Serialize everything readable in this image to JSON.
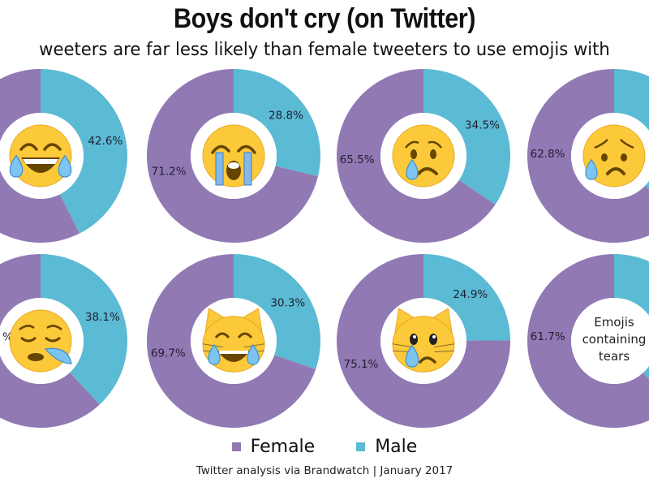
{
  "title": "Boys don't cry (on Twitter)",
  "subtitle": "Male tweeters are far less likely than female tweeters to use emojis with tears",
  "subtitle_visible": "weeters are far less likely than female tweeters to use emojis with",
  "colors": {
    "female": "#9179b4",
    "male": "#5bbad4"
  },
  "legend": [
    {
      "label": "Female",
      "key": "female"
    },
    {
      "label": "Male",
      "key": "male"
    }
  ],
  "source": "Twitter analysis via Brandwatch | January 2017",
  "chart_data": {
    "type": "pie",
    "title": "Boys don't cry (on Twitter)",
    "series_names": [
      "Female",
      "Male"
    ],
    "charts": [
      {
        "emoji": "face-with-tears-of-joy",
        "female": 57.4,
        "male": 42.6,
        "female_label": "",
        "male_label": "42.6%"
      },
      {
        "emoji": "loudly-crying-face",
        "female": 71.2,
        "male": 28.8,
        "female_label": "71.2%",
        "male_label": "28.8%"
      },
      {
        "emoji": "crying-face",
        "female": 65.5,
        "male": 34.5,
        "female_label": "65.5%",
        "male_label": "34.5%"
      },
      {
        "emoji": "disappointed-but-relieved-face",
        "female": 62.8,
        "male": 37.2,
        "female_label": "62.8%",
        "male_label": ""
      },
      {
        "emoji": "sleepy-face",
        "female": 61.9,
        "male": 38.1,
        "female_label": "%",
        "male_label": "38.1%"
      },
      {
        "emoji": "cat-face-with-tears-of-joy",
        "female": 69.7,
        "male": 30.3,
        "female_label": "69.7%",
        "male_label": "30.3%"
      },
      {
        "emoji": "crying-cat-face",
        "female": 75.1,
        "male": 24.9,
        "female_label": "75.1%",
        "male_label": "24.9%"
      },
      {
        "emoji": "",
        "center_text": [
          "Emojis",
          "containing",
          "tears"
        ],
        "female": 61.7,
        "male": 38.3,
        "female_label": "61.7%",
        "male_label": ""
      }
    ]
  }
}
